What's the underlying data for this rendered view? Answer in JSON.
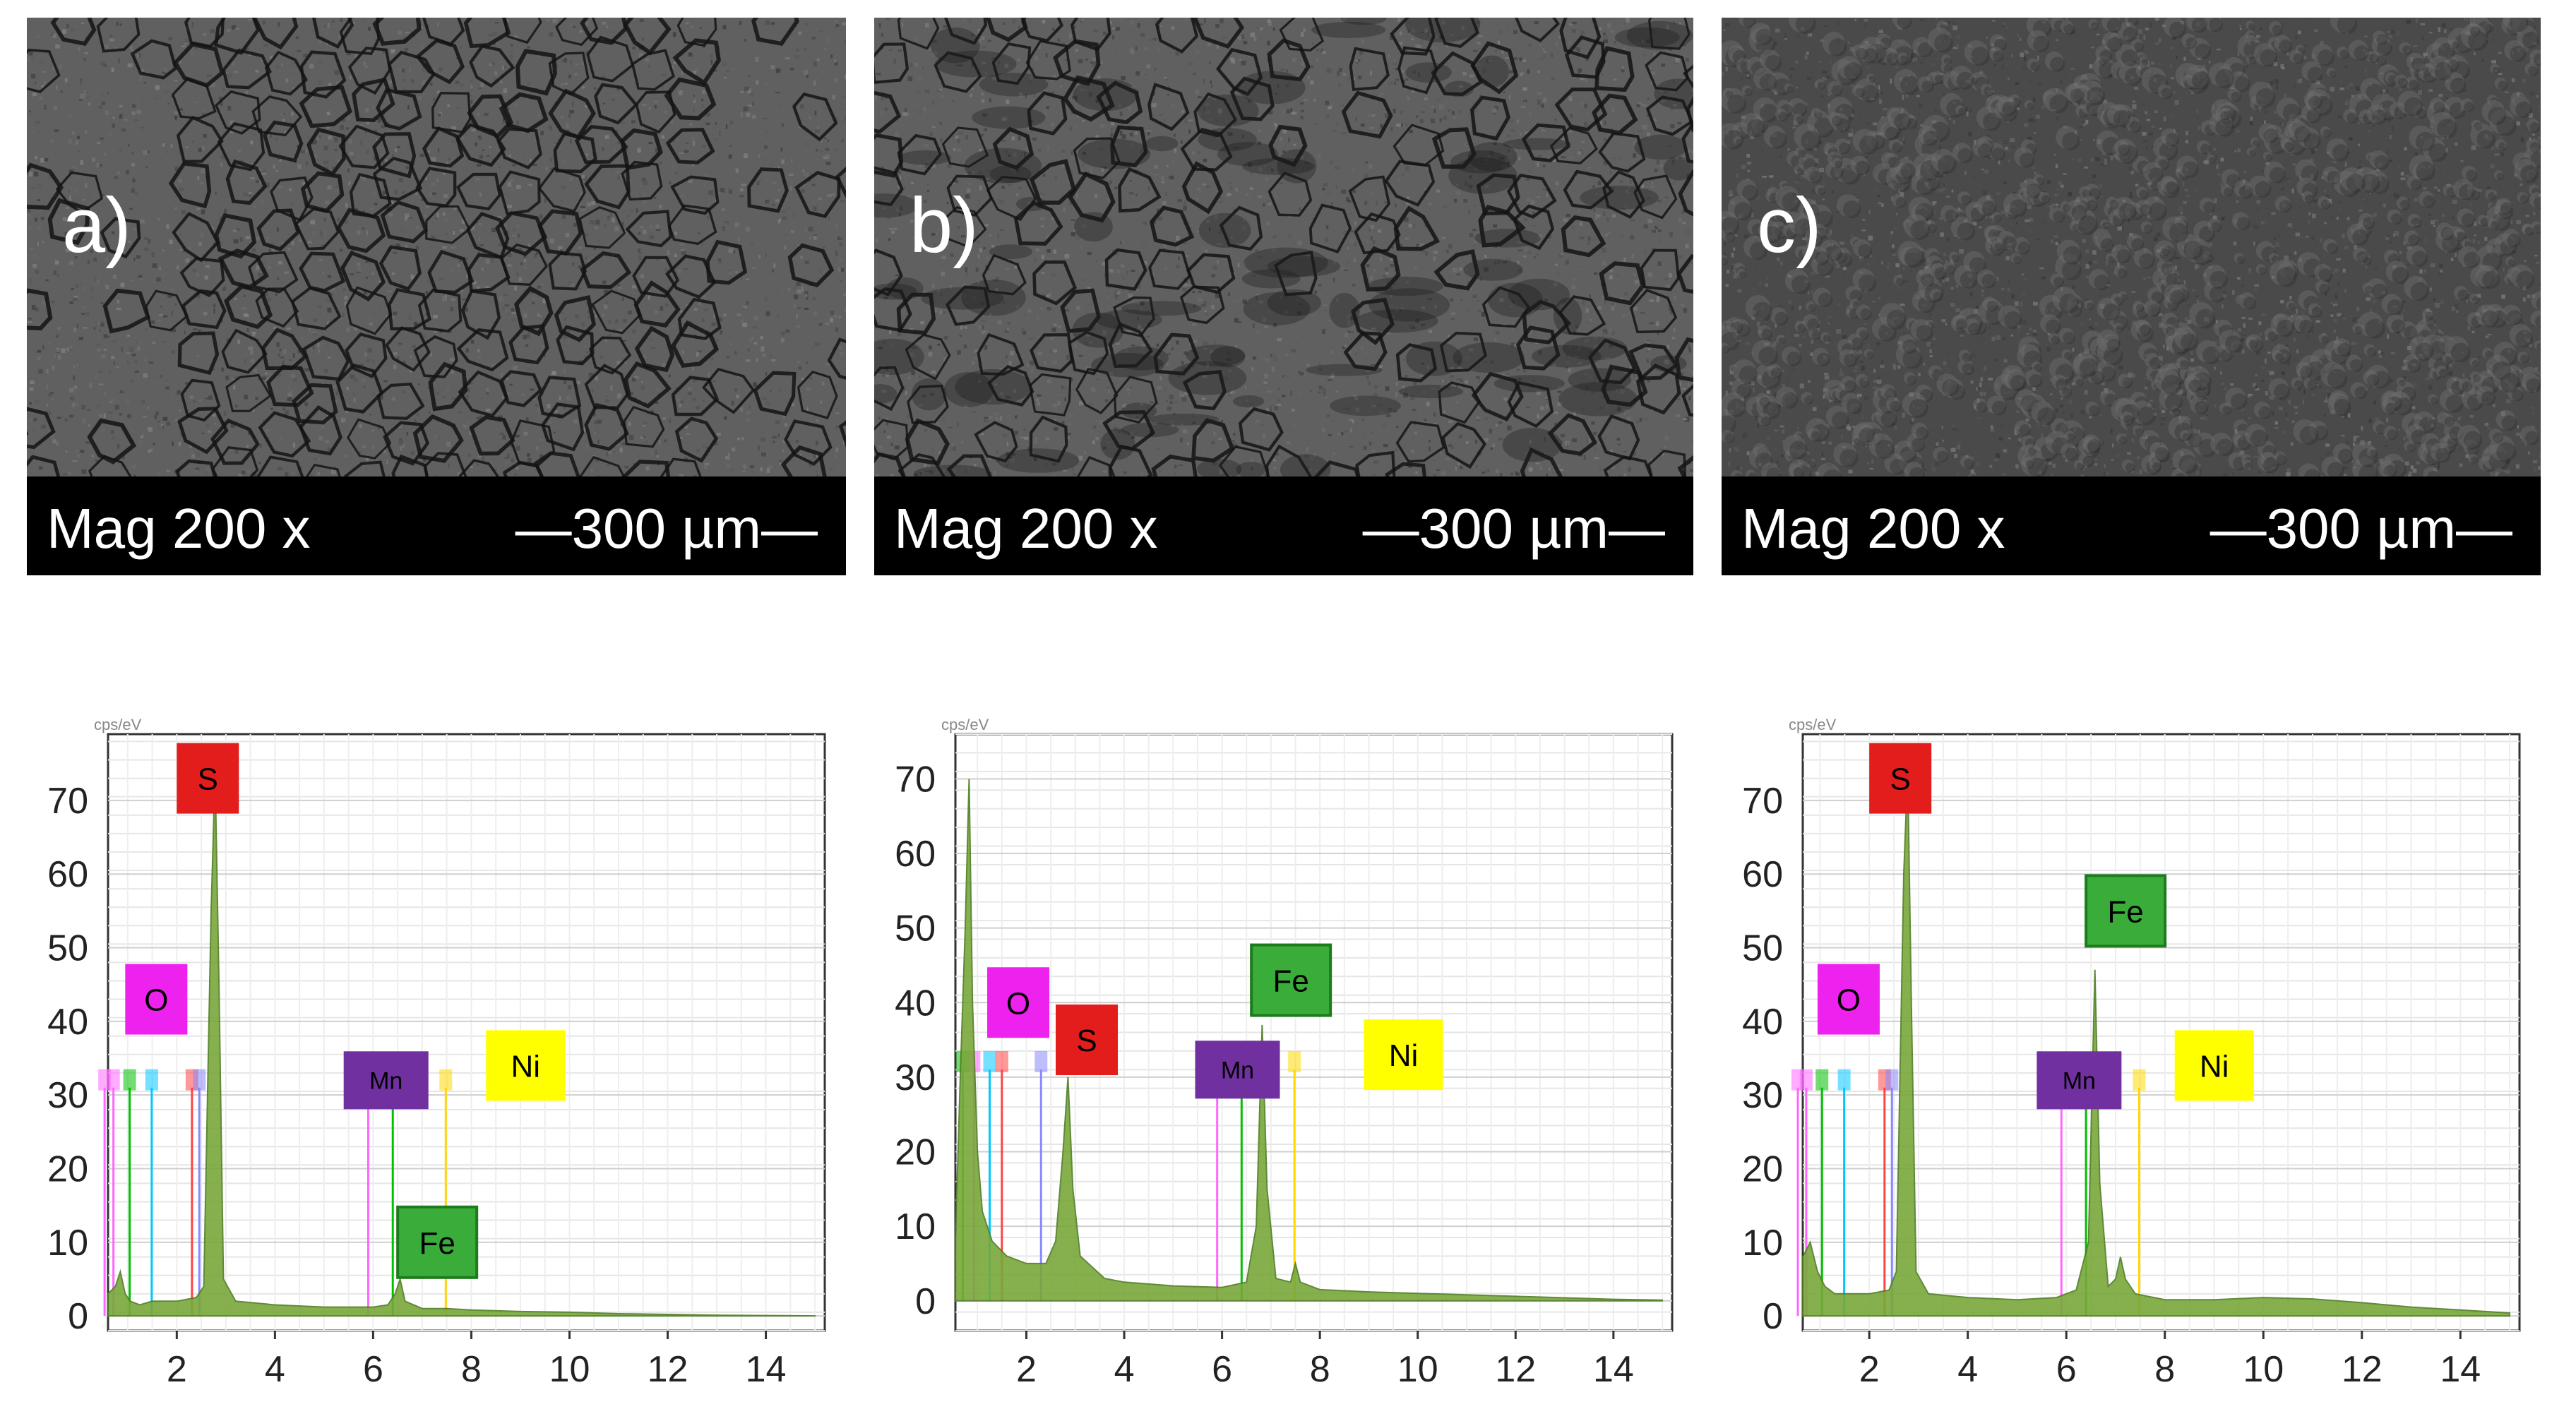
{
  "panels": [
    {
      "label": "a)",
      "mag_text": "Mag 200 x",
      "scale_text": "—300 µm—",
      "texture": "cracked",
      "eds": {
        "chart_data": {
          "type": "area",
          "y_unit_label": "cps/eV",
          "x_ticks": [
            2,
            4,
            6,
            8,
            10,
            12,
            14
          ],
          "y_ticks": [
            0,
            10,
            20,
            30,
            40,
            50,
            60,
            70
          ],
          "xlim": [
            0.6,
            15.2
          ],
          "ylim": [
            -2,
            79
          ],
          "fill_color": "#78a83a",
          "spectrum_points": [
            [
              0.6,
              3
            ],
            [
              0.75,
              4
            ],
            [
              0.85,
              6
            ],
            [
              0.95,
              3
            ],
            [
              1.05,
              2
            ],
            [
              1.25,
              1.5
            ],
            [
              1.5,
              2
            ],
            [
              2.0,
              2
            ],
            [
              2.4,
              2.5
            ],
            [
              2.55,
              4
            ],
            [
              2.7,
              55
            ],
            [
              2.78,
              74
            ],
            [
              2.86,
              45
            ],
            [
              2.95,
              5
            ],
            [
              3.2,
              2
            ],
            [
              4,
              1.5
            ],
            [
              5,
              1.2
            ],
            [
              6,
              1.2
            ],
            [
              6.3,
              1.5
            ],
            [
              6.45,
              3
            ],
            [
              6.55,
              5
            ],
            [
              6.65,
              2
            ],
            [
              7,
              1
            ],
            [
              7.5,
              1
            ],
            [
              8,
              0.8
            ],
            [
              9,
              0.6
            ],
            [
              10,
              0.5
            ],
            [
              11,
              0.3
            ],
            [
              12,
              0.2
            ],
            [
              13,
              0.1
            ],
            [
              15,
              0
            ]
          ],
          "element_tags": [
            {
              "name": "S",
              "bg": "#e31c1c",
              "fg": "#000000",
              "x": 2.0,
              "y": 73
            },
            {
              "name": "O",
              "bg": "#ee22ee",
              "fg": "#000000",
              "x": 0.95,
              "y": 43
            },
            {
              "name": "Mn",
              "bg": "#7030a0",
              "fg": "#000000",
              "x": 5.4,
              "y": 32
            },
            {
              "name": "Ni",
              "bg": "#ffff00",
              "fg": "#000000",
              "x": 8.3,
              "y": 34
            },
            {
              "name": "Fe",
              "bg": "#3aac3a",
              "fg": "#000000",
              "x": 6.5,
              "y": 10
            }
          ],
          "element_lines": [
            {
              "x": 0.53,
              "color": "#ff66ff"
            },
            {
              "x": 0.71,
              "color": "#ff66ff"
            },
            {
              "x": 1.04,
              "color": "#00c000"
            },
            {
              "x": 1.49,
              "color": "#00c8ff"
            },
            {
              "x": 2.31,
              "color": "#ff4444"
            },
            {
              "x": 2.46,
              "color": "#8888ff"
            },
            {
              "x": 5.9,
              "color": "#ff66ff"
            },
            {
              "x": 6.4,
              "color": "#00c000"
            },
            {
              "x": 7.48,
              "color": "#ffd800"
            }
          ]
        }
      }
    },
    {
      "label": "b)",
      "mag_text": "Mag 200 x",
      "scale_text": "—300 µm—",
      "texture": "mixed",
      "eds": {
        "chart_data": {
          "type": "area",
          "y_unit_label": "cps/eV",
          "x_ticks": [
            2,
            4,
            6,
            8,
            10,
            12,
            14
          ],
          "y_ticks": [
            0,
            10,
            20,
            30,
            40,
            50,
            60,
            70
          ],
          "xlim": [
            0.55,
            15.2
          ],
          "ylim": [
            -4,
            76
          ],
          "fill_color": "#78a83a",
          "spectrum_points": [
            [
              0.55,
              8
            ],
            [
              0.65,
              30
            ],
            [
              0.75,
              50
            ],
            [
              0.83,
              70
            ],
            [
              0.9,
              40
            ],
            [
              1.0,
              20
            ],
            [
              1.1,
              12
            ],
            [
              1.3,
              8
            ],
            [
              1.6,
              6
            ],
            [
              2.0,
              5
            ],
            [
              2.4,
              5
            ],
            [
              2.6,
              8
            ],
            [
              2.75,
              20
            ],
            [
              2.85,
              30
            ],
            [
              2.95,
              15
            ],
            [
              3.1,
              6
            ],
            [
              3.6,
              3
            ],
            [
              4,
              2.5
            ],
            [
              5,
              2
            ],
            [
              6,
              1.8
            ],
            [
              6.5,
              2.5
            ],
            [
              6.7,
              10
            ],
            [
              6.82,
              37
            ],
            [
              6.92,
              15
            ],
            [
              7.1,
              3
            ],
            [
              7.4,
              2.5
            ],
            [
              7.5,
              5
            ],
            [
              7.6,
              2.5
            ],
            [
              8,
              1.5
            ],
            [
              9,
              1.2
            ],
            [
              10,
              1
            ],
            [
              11,
              0.8
            ],
            [
              12,
              0.6
            ],
            [
              13,
              0.4
            ],
            [
              14,
              0.2
            ],
            [
              15,
              0.1
            ]
          ],
          "element_tags": [
            {
              "name": "O",
              "bg": "#ee22ee",
              "fg": "#000000",
              "x": 1.2,
              "y": 40
            },
            {
              "name": "S",
              "bg": "#e31c1c",
              "fg": "#000000",
              "x": 2.6,
              "y": 35
            },
            {
              "name": "Mn",
              "bg": "#7030a0",
              "fg": "#000000",
              "x": 5.45,
              "y": 31
            },
            {
              "name": "Fe",
              "bg": "#3aac3a",
              "fg": "#000000",
              "x": 6.6,
              "y": 43
            },
            {
              "name": "Ni",
              "bg": "#ffff00",
              "fg": "#000000",
              "x": 8.9,
              "y": 33
            }
          ],
          "element_lines": [
            {
              "x": 0.7,
              "color": "#00c000"
            },
            {
              "x": 0.93,
              "color": "#ff66ff"
            },
            {
              "x": 1.25,
              "color": "#00c8ff"
            },
            {
              "x": 1.5,
              "color": "#ff4444"
            },
            {
              "x": 2.3,
              "color": "#8888ff"
            },
            {
              "x": 5.9,
              "color": "#ff66ff"
            },
            {
              "x": 6.4,
              "color": "#00c000"
            },
            {
              "x": 7.48,
              "color": "#ffd800"
            }
          ]
        }
      }
    },
    {
      "label": "c)",
      "mag_text": "Mag 200 x",
      "scale_text": "—300 µm—",
      "texture": "nodular",
      "eds": {
        "chart_data": {
          "type": "area",
          "y_unit_label": "cps/eV",
          "x_ticks": [
            2,
            4,
            6,
            8,
            10,
            12,
            14
          ],
          "y_ticks": [
            0,
            10,
            20,
            30,
            40,
            50,
            60,
            70
          ],
          "xlim": [
            0.65,
            15.2
          ],
          "ylim": [
            -2,
            79
          ],
          "fill_color": "#78a83a",
          "spectrum_points": [
            [
              0.65,
              8
            ],
            [
              0.8,
              10
            ],
            [
              0.95,
              6
            ],
            [
              1.1,
              4
            ],
            [
              1.3,
              3
            ],
            [
              1.6,
              3
            ],
            [
              2,
              3
            ],
            [
              2.4,
              3.5
            ],
            [
              2.55,
              6
            ],
            [
              2.7,
              60
            ],
            [
              2.78,
              74
            ],
            [
              2.86,
              40
            ],
            [
              2.95,
              6
            ],
            [
              3.2,
              3
            ],
            [
              4,
              2.5
            ],
            [
              5,
              2.2
            ],
            [
              5.8,
              2.5
            ],
            [
              6.2,
              3.5
            ],
            [
              6.45,
              10
            ],
            [
              6.58,
              47
            ],
            [
              6.68,
              18
            ],
            [
              6.85,
              4
            ],
            [
              7.0,
              5
            ],
            [
              7.1,
              8
            ],
            [
              7.2,
              5
            ],
            [
              7.4,
              3
            ],
            [
              8,
              2.2
            ],
            [
              9,
              2.2
            ],
            [
              10,
              2.5
            ],
            [
              11,
              2.3
            ],
            [
              12,
              1.8
            ],
            [
              13,
              1.2
            ],
            [
              14,
              0.8
            ],
            [
              15,
              0.4
            ]
          ],
          "element_tags": [
            {
              "name": "S",
              "bg": "#e31c1c",
              "fg": "#000000",
              "x": 2.0,
              "y": 73
            },
            {
              "name": "O",
              "bg": "#ee22ee",
              "fg": "#000000",
              "x": 0.95,
              "y": 43
            },
            {
              "name": "Fe",
              "bg": "#3aac3a",
              "fg": "#000000",
              "x": 6.4,
              "y": 55
            },
            {
              "name": "Mn",
              "bg": "#7030a0",
              "fg": "#000000",
              "x": 5.4,
              "y": 32
            },
            {
              "name": "Ni",
              "bg": "#ffff00",
              "fg": "#000000",
              "x": 8.2,
              "y": 34
            }
          ],
          "element_lines": [
            {
              "x": 0.55,
              "color": "#ff66ff"
            },
            {
              "x": 0.72,
              "color": "#ff66ff"
            },
            {
              "x": 1.04,
              "color": "#00c000"
            },
            {
              "x": 1.49,
              "color": "#00c8ff"
            },
            {
              "x": 2.31,
              "color": "#ff4444"
            },
            {
              "x": 2.46,
              "color": "#8888ff"
            },
            {
              "x": 5.9,
              "color": "#ff66ff"
            },
            {
              "x": 6.4,
              "color": "#00c000"
            },
            {
              "x": 7.48,
              "color": "#ffd800"
            }
          ]
        }
      }
    }
  ]
}
